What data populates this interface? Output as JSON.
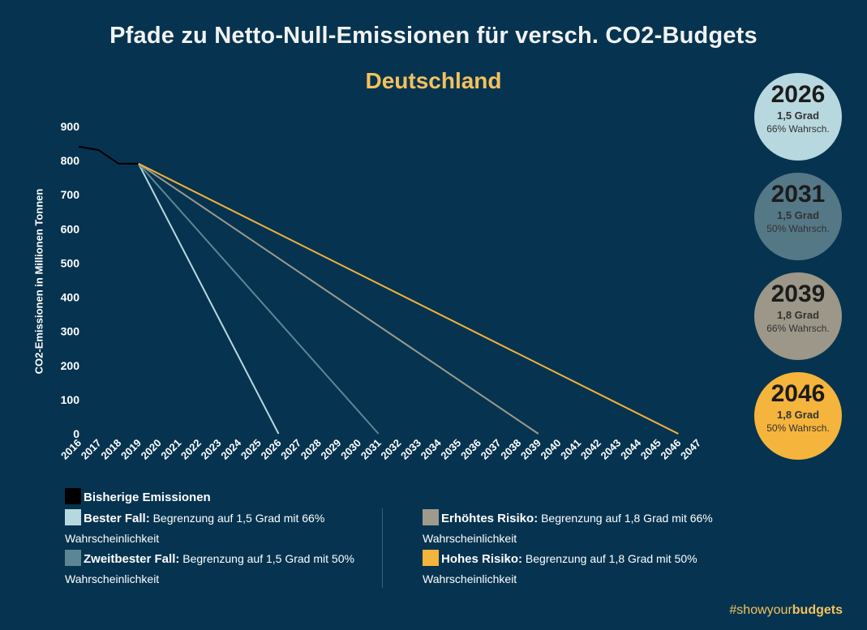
{
  "title": "Pfade zu Netto-Null-Emissionen für versch. CO2-Budgets",
  "subtitle": "Deutschland",
  "chart_data": {
    "type": "line",
    "ylabel": "CO2-Emissionen in Millionen Tonnen",
    "xlabel": "",
    "xlim": [
      2016,
      2047
    ],
    "ylim": [
      0,
      900
    ],
    "yticks": [
      0,
      100,
      200,
      300,
      400,
      500,
      600,
      700,
      800,
      900
    ],
    "xticks": [
      2016,
      2017,
      2018,
      2019,
      2020,
      2021,
      2022,
      2023,
      2024,
      2025,
      2026,
      2027,
      2028,
      2029,
      2030,
      2031,
      2032,
      2033,
      2034,
      2035,
      2036,
      2037,
      2038,
      2039,
      2040,
      2041,
      2042,
      2043,
      2044,
      2045,
      2046,
      2047
    ],
    "grid": false,
    "series": [
      {
        "name": "Bisherige Emissionen",
        "color": "#000000",
        "x": [
          2016,
          2017,
          2018,
          2019
        ],
        "y": [
          841,
          831,
          791,
          791
        ]
      },
      {
        "name": "Bester Fall",
        "color": "#b8d8e0",
        "x": [
          2019,
          2026
        ],
        "y": [
          791,
          0
        ]
      },
      {
        "name": "Zweitbester Fall",
        "color": "#5d8695",
        "x": [
          2019,
          2031
        ],
        "y": [
          791,
          0
        ]
      },
      {
        "name": "Erhöhtes Risiko",
        "color": "#9e9a8c",
        "x": [
          2019,
          2039
        ],
        "y": [
          791,
          0
        ]
      },
      {
        "name": "Hohes Risiko",
        "color": "#f5b43b",
        "x": [
          2019,
          2046
        ],
        "y": [
          791,
          0
        ]
      }
    ]
  },
  "circles": [
    {
      "year": "2026",
      "degree": "1,5 Grad",
      "prob": "66% Wahrsch.",
      "color": "#b8d8e0"
    },
    {
      "year": "2031",
      "degree": "1,5 Grad",
      "prob": "50% Wahrsch.",
      "color": "#557886"
    },
    {
      "year": "2039",
      "degree": "1,8 Grad",
      "prob": "66% Wahrsch.",
      "color": "#9c9788"
    },
    {
      "year": "2046",
      "degree": "1,8 Grad",
      "prob": "50% Wahrsch.",
      "color": "#f5b43b"
    }
  ],
  "legend": {
    "historic": {
      "label": "Bisherige Emissionen",
      "color": "#000000"
    },
    "items": [
      {
        "label": "Bester Fall:",
        "desc": "Begrenzung auf 1,5 Grad mit 66%",
        "wrap": "Wahrscheinlichkeit",
        "color": "#b8d8e0"
      },
      {
        "label": "Zweitbester Fall:",
        "desc": "Begrenzung auf 1,5 Grad mit 50%",
        "wrap": "Wahrscheinlichkeit",
        "color": "#5d8695"
      },
      {
        "label": "Erhöhtes Risiko:",
        "desc": "Begrenzung auf 1,8 Grad mit 66%",
        "wrap": "Wahrscheinlichkeit",
        "color": "#9e9a8c"
      },
      {
        "label": "Hohes Risiko:",
        "desc": "Begrenzung auf 1,8 Grad mit 50%",
        "wrap": "Wahrscheinlichkeit",
        "color": "#f5b43b"
      }
    ]
  },
  "hashtag": {
    "part1": "#showyour",
    "part2": "budgets"
  }
}
